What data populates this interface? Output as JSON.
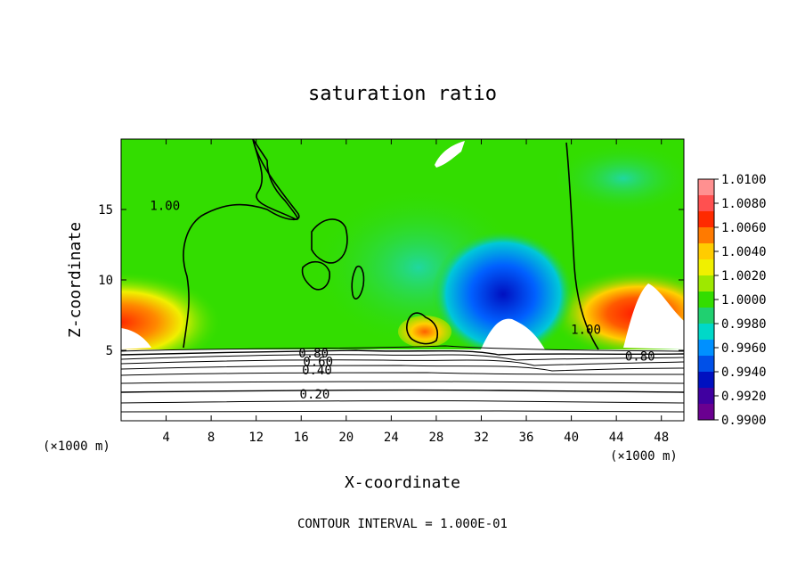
{
  "chart_data": {
    "type": "heatmap",
    "title": "saturation ratio",
    "xlabel": "X-coordinate",
    "ylabel": "Z-coordinate",
    "x_unit_left": "(×1000 m)",
    "x_unit_right": "(×1000 m)",
    "footer": "CONTOUR INTERVAL = 1.000E-01",
    "xlim": [
      0,
      50
    ],
    "ylim": [
      0,
      20
    ],
    "x_ticks": [
      4,
      8,
      12,
      16,
      20,
      24,
      28,
      32,
      36,
      40,
      44,
      48
    ],
    "y_ticks": [
      5,
      10,
      15
    ],
    "x_tick_labels": [
      "4",
      "8",
      "12",
      "16",
      "20",
      "24",
      "28",
      "32",
      "36",
      "40",
      "44",
      "48"
    ],
    "y_tick_labels": [
      "5",
      "10",
      "15"
    ],
    "colorbar": {
      "labels": [
        "1.0100",
        "1.0080",
        "1.0060",
        "1.0040",
        "1.0020",
        "1.0000",
        "0.9980",
        "0.9960",
        "0.9940",
        "0.9920",
        "0.9900"
      ],
      "colors": [
        "#ff9090",
        "#ff5050",
        "#ff2a00",
        "#ff7a00",
        "#ffcc00",
        "#f0f000",
        "#9ee800",
        "#33dd00",
        "#20d070",
        "#00d8c8",
        "#0090ff",
        "#0050e8",
        "#0010c0",
        "#4000a0",
        "#6a0090"
      ]
    },
    "contour_labels": [
      {
        "text": "1.00",
        "x": 3.9,
        "z": 15.3
      },
      {
        "text": "1.00",
        "x": 41.3,
        "z": 6.5
      },
      {
        "text": "0.80",
        "x": 46.1,
        "z": 4.6
      },
      {
        "text": "0.80",
        "x": 17.1,
        "z": 4.8
      },
      {
        "text": "0.60",
        "x": 17.5,
        "z": 4.2
      },
      {
        "text": "0.40",
        "x": 17.4,
        "z": 3.6
      },
      {
        "text": "0.20",
        "x": 17.2,
        "z": 1.9
      }
    ]
  }
}
